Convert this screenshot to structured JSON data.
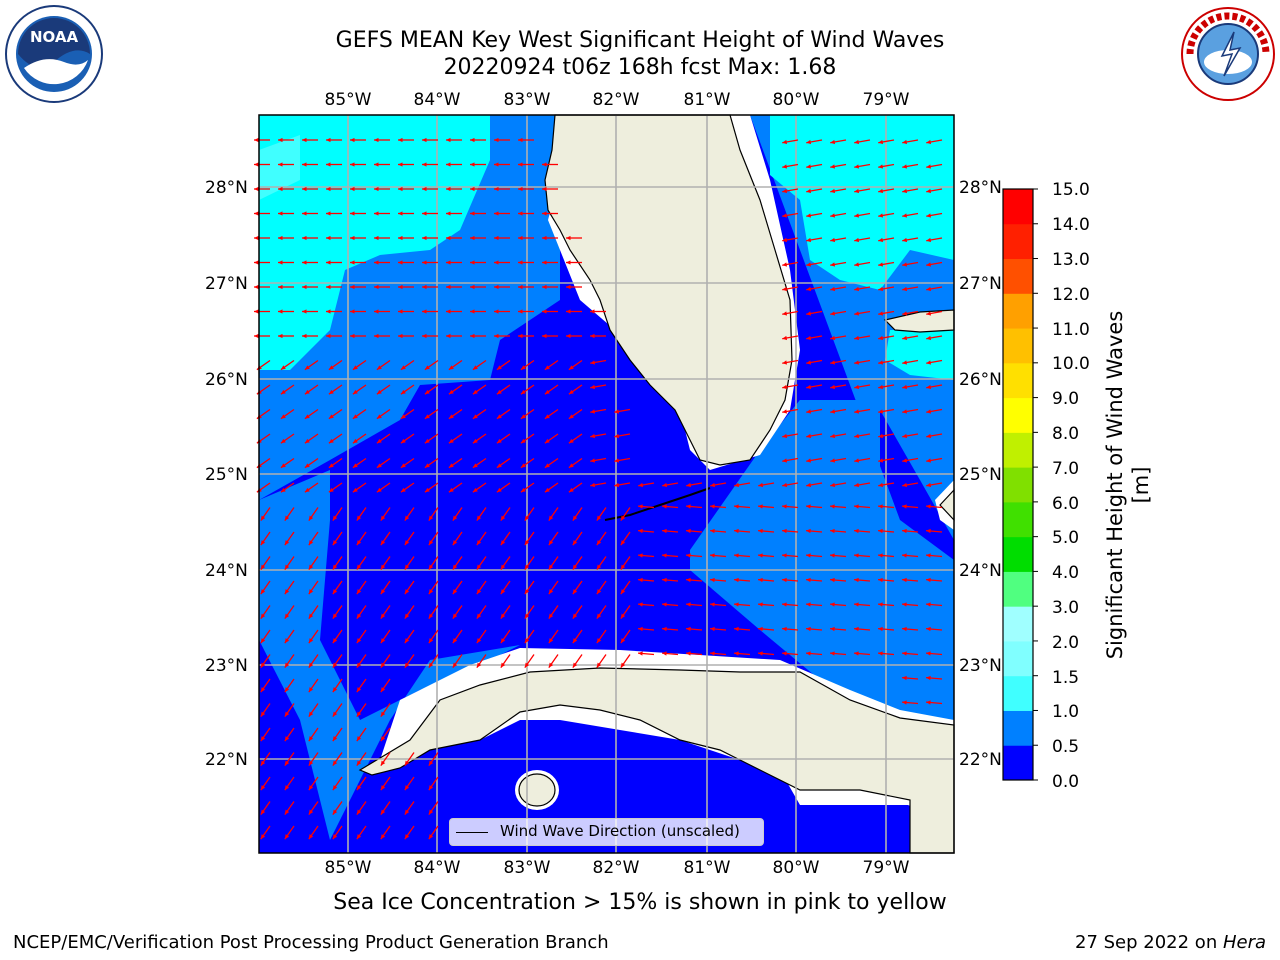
{
  "title": {
    "line1": "GEFS MEAN Key West Significant Height of Wind Waves",
    "line2": "20220924 t06z 168h fcst   Max: 1.68"
  },
  "map": {
    "lon_labels": [
      "85°W",
      "84°W",
      "83°W",
      "82°W",
      "81°W",
      "80°W",
      "79°W"
    ],
    "lat_labels": [
      "28°N",
      "27°N",
      "26°N",
      "25°N",
      "24°N",
      "23°N",
      "22°N"
    ],
    "legend_label": "Wind Wave Direction (unscaled)",
    "arrow_color": "#ff0000",
    "land_color": "#eeeedd",
    "grid_color": "#b0b0b0"
  },
  "colorbar": {
    "title": "Significant Height of Wind Waves [m]",
    "ticks": [
      "15.0",
      "14.0",
      "13.0",
      "12.0",
      "11.0",
      "10.0",
      "9.0",
      "8.0",
      "7.0",
      "6.0",
      "5.0",
      "4.0",
      "3.0",
      "2.0",
      "1.5",
      "1.0",
      "0.5",
      "0.0"
    ],
    "colors": [
      "#0000ff",
      "#0080ff",
      "#00ffff",
      "#40ffff",
      "#80ffff",
      "#a0ffff",
      "#50ff80",
      "#00ff00",
      "#00dd00",
      "#40e000",
      "#80e000",
      "#c0f000",
      "#e0f000",
      "#ffff00",
      "#ffe000",
      "#ffc000",
      "#ffa000",
      "#ff8000",
      "#ff5000",
      "#ff2000",
      "#ff0000"
    ]
  },
  "caption": "Sea Ice Concentration > 15% is shown in pink to yellow",
  "footer": {
    "left": "NCEP/EMC/Verification Post Processing Product Generation Branch",
    "right_prefix": "27 Sep 2022 on ",
    "right_host": "Hera"
  },
  "logos": {
    "noaa": "NOAA",
    "nws": "NATIONAL WEATHER SERVICE"
  }
}
